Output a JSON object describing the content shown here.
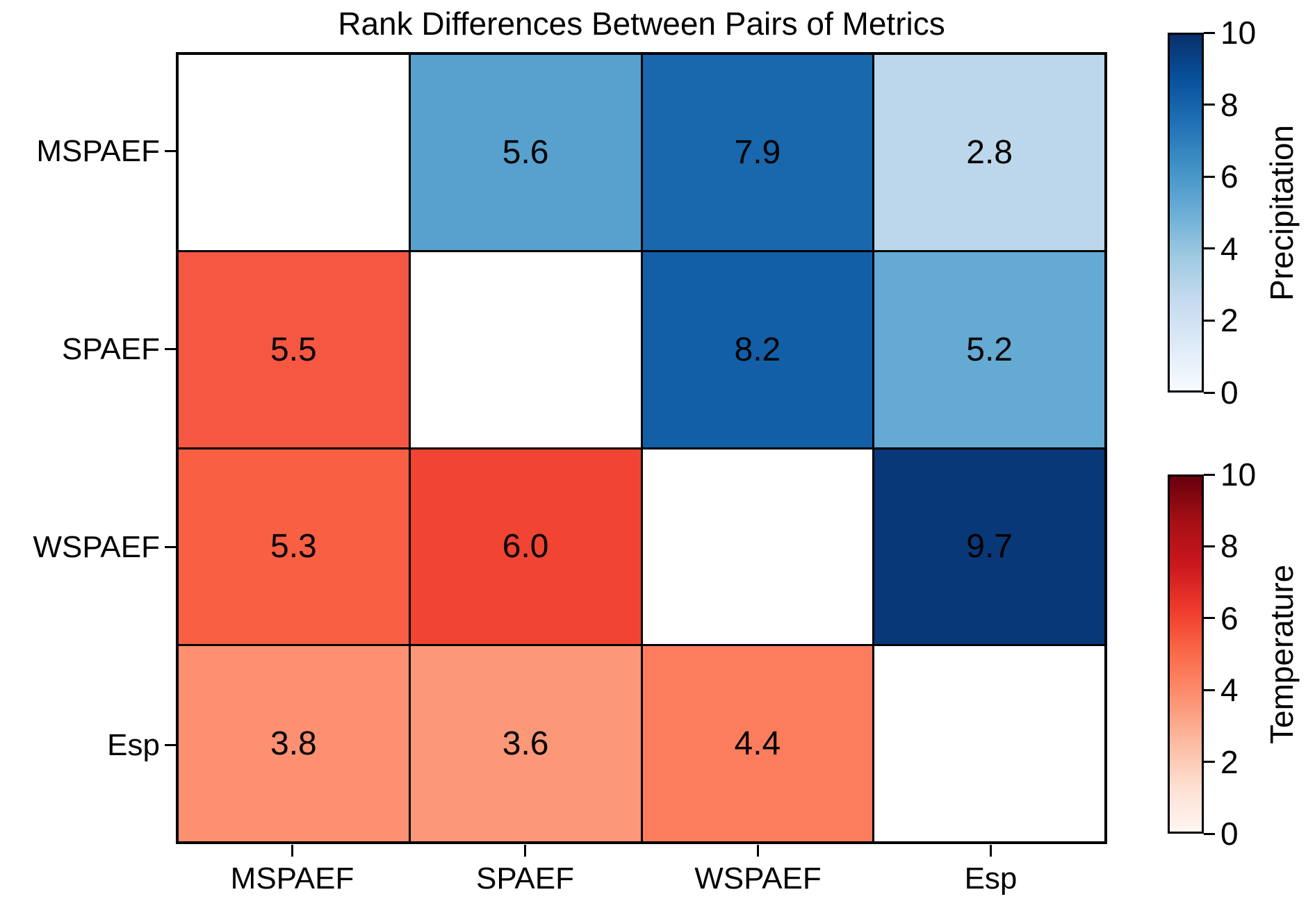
{
  "chart_data": {
    "type": "heatmap",
    "title": "Rank Differences Between Pairs of Metrics",
    "x_labels": [
      "MSPAEF",
      "SPAEF",
      "WSPAEF",
      "Esp"
    ],
    "y_labels": [
      "MSPAEF",
      "SPAEF",
      "WSPAEF",
      "Esp"
    ],
    "matrix": [
      [
        null,
        5.6,
        7.9,
        2.8
      ],
      [
        5.5,
        null,
        8.2,
        5.2
      ],
      [
        5.3,
        6.0,
        null,
        9.7
      ],
      [
        3.8,
        3.6,
        4.4,
        null
      ]
    ],
    "cell_text": [
      [
        "",
        "5.6",
        "7.9",
        "2.8"
      ],
      [
        "5.5",
        "",
        "8.2",
        "5.2"
      ],
      [
        "5.3",
        "6.0",
        "",
        "9.7"
      ],
      [
        "3.8",
        "3.6",
        "4.4",
        ""
      ]
    ],
    "cell_colors": [
      [
        "#ffffff",
        "#58a1cf",
        "#1967ad",
        "#bcd7eb"
      ],
      [
        "#f65742",
        "#ffffff",
        "#135fa7",
        "#64aad3"
      ],
      [
        "#f85f43",
        "#f14432",
        "#ffffff",
        "#083877"
      ],
      [
        "#fc9070",
        "#fc9778",
        "#fb7d5d",
        "#ffffff"
      ]
    ],
    "value_range": [
      0,
      10
    ],
    "upper_triangle_meaning": "Precipitation",
    "lower_triangle_meaning": "Temperature",
    "grid_line_color": "#000000",
    "text_color": "#000000",
    "colorbars": [
      {
        "label": "Precipitation",
        "ticks": [
          "0",
          "2",
          "4",
          "6",
          "8",
          "10"
        ],
        "range": [
          0,
          10
        ],
        "colormap": "Blues",
        "gradient_bottom_to_top": [
          "#f7fbff",
          "#deebf7",
          "#c6dbef",
          "#9ecae1",
          "#6baed6",
          "#4292c6",
          "#2171b5",
          "#08519c",
          "#08306b"
        ]
      },
      {
        "label": "Temperature",
        "ticks": [
          "0",
          "2",
          "4",
          "6",
          "8",
          "10"
        ],
        "range": [
          0,
          10
        ],
        "colormap": "Reds",
        "gradient_bottom_to_top": [
          "#fff5f0",
          "#fee0d2",
          "#fcbba1",
          "#fc9272",
          "#fb6a4a",
          "#ef3b2c",
          "#cb181d",
          "#a50f15",
          "#67000d"
        ]
      }
    ]
  }
}
